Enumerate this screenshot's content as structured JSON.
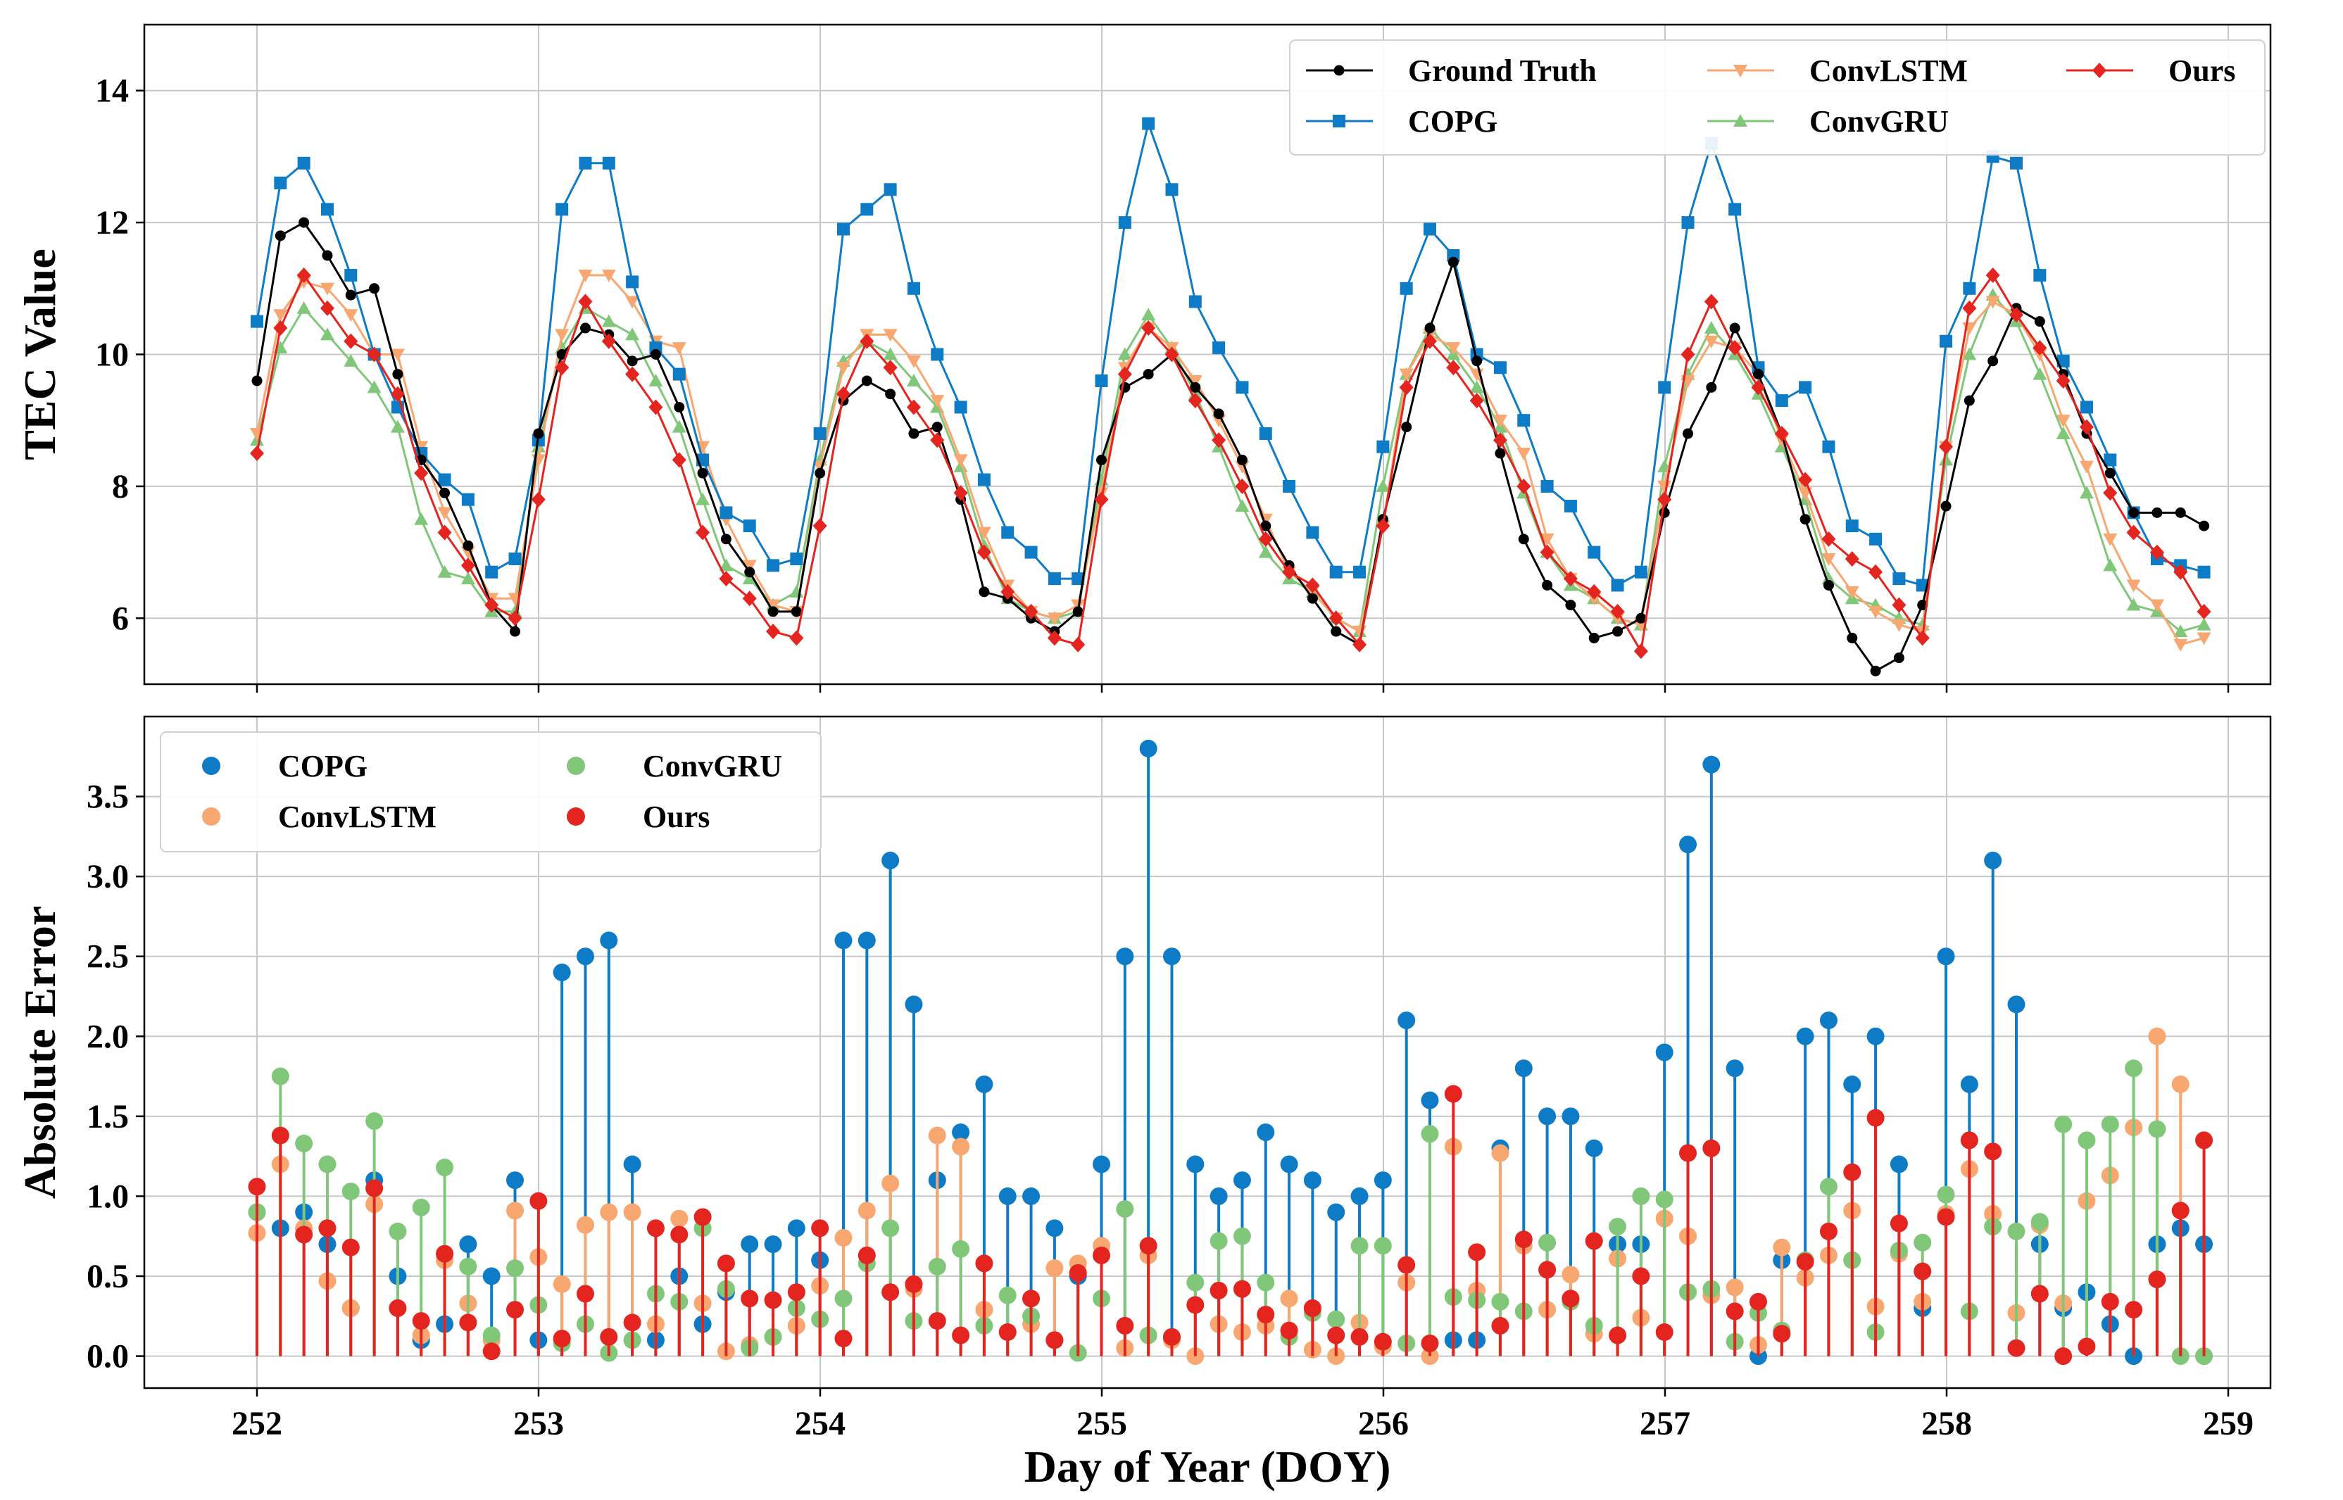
{
  "chart_data": [
    {
      "type": "line",
      "ylabel": "TEC Value",
      "xlim": [
        251.6,
        259.15
      ],
      "ylim": [
        5.0,
        15.0
      ],
      "yticks": [
        6,
        8,
        10,
        12,
        14
      ],
      "grid": true,
      "legend_placement": "top-right",
      "x_start": 252.0,
      "x_step": 0.0833,
      "series": [
        {
          "name": "Ground Truth",
          "color": "#000000",
          "marker": "circle",
          "values": [
            9.6,
            11.8,
            12.0,
            11.5,
            10.9,
            11.0,
            9.7,
            8.4,
            7.9,
            7.1,
            6.2,
            5.8,
            8.8,
            10.0,
            10.4,
            10.3,
            9.9,
            10.0,
            9.2,
            8.2,
            7.2,
            6.7,
            6.1,
            6.1,
            8.2,
            9.3,
            9.6,
            9.4,
            8.8,
            8.9,
            7.8,
            6.4,
            6.3,
            6.0,
            5.8,
            6.1,
            8.4,
            9.5,
            9.7,
            10.0,
            9.5,
            9.1,
            8.4,
            7.4,
            6.8,
            6.3,
            5.8,
            5.6,
            7.5,
            8.9,
            10.4,
            11.4,
            9.9,
            8.5,
            7.2,
            6.5,
            6.2,
            5.7,
            5.8,
            6.0,
            7.6,
            8.8,
            9.5,
            10.4,
            9.7,
            8.8,
            7.5,
            6.5,
            5.7,
            5.2,
            5.4,
            6.2,
            7.7,
            9.3,
            9.9,
            10.7,
            10.5,
            9.7,
            8.8,
            8.2,
            7.6,
            7.6,
            7.6,
            7.4
          ]
        },
        {
          "name": "COPG",
          "color": "#0e7bc6",
          "marker": "square",
          "values": [
            10.5,
            12.6,
            12.9,
            12.2,
            11.2,
            10.0,
            9.2,
            8.5,
            8.1,
            7.8,
            6.7,
            6.9,
            8.7,
            12.2,
            12.9,
            12.9,
            11.1,
            10.1,
            9.7,
            8.4,
            7.6,
            7.4,
            6.8,
            6.9,
            8.8,
            11.9,
            12.2,
            12.5,
            11.0,
            10.0,
            9.2,
            8.1,
            7.3,
            7.0,
            6.6,
            6.6,
            9.6,
            12.0,
            13.5,
            12.5,
            10.8,
            10.1,
            9.5,
            8.8,
            8.0,
            7.3,
            6.7,
            6.7,
            8.6,
            11.0,
            11.9,
            11.5,
            10.0,
            9.8,
            9.0,
            8.0,
            7.7,
            7.0,
            6.5,
            6.7,
            9.5,
            12.0,
            13.2,
            12.2,
            9.8,
            9.3,
            9.5,
            8.6,
            7.4,
            7.2,
            6.6,
            6.5,
            10.2,
            11.0,
            13.0,
            12.9,
            11.2,
            9.9,
            9.2,
            8.4,
            7.6,
            6.9,
            6.8,
            6.7
          ]
        },
        {
          "name": "ConvLSTM",
          "color": "#f9a770",
          "marker": "triangle-down",
          "values": [
            8.8,
            10.6,
            11.1,
            11.0,
            10.6,
            10.0,
            10.0,
            8.6,
            7.6,
            7.0,
            6.3,
            6.3,
            8.4,
            10.3,
            11.2,
            11.2,
            10.8,
            10.2,
            10.1,
            8.6,
            7.5,
            6.8,
            6.2,
            6.1,
            8.3,
            9.8,
            10.3,
            10.3,
            9.9,
            9.3,
            8.4,
            7.3,
            6.5,
            6.1,
            6.0,
            6.2,
            7.9,
            9.8,
            10.4,
            10.1,
            9.6,
            9.0,
            8.3,
            7.5,
            6.7,
            6.4,
            6.0,
            5.8,
            7.4,
            9.7,
            10.3,
            10.1,
            9.7,
            9.0,
            8.5,
            7.2,
            6.6,
            6.3,
            6.0,
            5.9,
            8.0,
            9.6,
            10.2,
            10.1,
            9.7,
            8.7,
            7.9,
            6.9,
            6.4,
            6.1,
            5.9,
            5.8,
            8.6,
            10.4,
            10.8,
            10.6,
            10.0,
            9.0,
            8.3,
            7.2,
            6.5,
            6.2,
            5.6,
            5.7
          ]
        },
        {
          "name": "ConvGRU",
          "color": "#80c77a",
          "marker": "triangle-up",
          "values": [
            8.7,
            10.1,
            10.7,
            10.3,
            9.9,
            9.5,
            8.9,
            7.5,
            6.7,
            6.6,
            6.1,
            6.1,
            8.6,
            10.1,
            10.7,
            10.5,
            10.3,
            9.6,
            8.9,
            7.8,
            6.8,
            6.6,
            6.2,
            6.4,
            8.4,
            9.9,
            10.2,
            10.0,
            9.6,
            9.2,
            8.3,
            7.1,
            6.3,
            6.1,
            6.0,
            6.1,
            8.1,
            10.0,
            10.6,
            10.1,
            9.4,
            8.6,
            7.7,
            7.0,
            6.6,
            6.4,
            6.0,
            5.8,
            8.0,
            9.7,
            10.4,
            10.0,
            9.5,
            8.9,
            7.9,
            7.0,
            6.5,
            6.3,
            6.0,
            5.9,
            8.3,
            9.7,
            10.4,
            10.0,
            9.4,
            8.6,
            7.8,
            6.6,
            6.3,
            6.2,
            6.0,
            5.9,
            8.4,
            10.0,
            10.9,
            10.5,
            9.7,
            8.8,
            7.9,
            6.8,
            6.2,
            6.1,
            5.8,
            5.9
          ]
        },
        {
          "name": "Ours",
          "color": "#e3241f",
          "marker": "diamond",
          "values": [
            8.5,
            10.4,
            11.2,
            10.7,
            10.2,
            10.0,
            9.4,
            8.2,
            7.3,
            6.8,
            6.2,
            6.0,
            7.8,
            9.8,
            10.8,
            10.2,
            9.7,
            9.2,
            8.4,
            7.3,
            6.6,
            6.3,
            5.8,
            5.7,
            7.4,
            9.4,
            10.2,
            9.8,
            9.2,
            8.7,
            7.9,
            7.0,
            6.4,
            6.1,
            5.7,
            5.6,
            7.8,
            9.7,
            10.4,
            10.0,
            9.3,
            8.7,
            8.0,
            7.2,
            6.7,
            6.5,
            6.0,
            5.6,
            7.4,
            9.5,
            10.2,
            9.8,
            9.3,
            8.7,
            8.0,
            7.0,
            6.6,
            6.4,
            6.1,
            5.5,
            7.8,
            10.0,
            10.8,
            10.1,
            9.5,
            8.8,
            8.1,
            7.2,
            6.9,
            6.7,
            6.2,
            5.7,
            8.6,
            10.7,
            11.2,
            10.6,
            10.1,
            9.6,
            8.9,
            7.9,
            7.3,
            7.0,
            6.7,
            6.1
          ]
        }
      ]
    },
    {
      "type": "stem",
      "xlabel": "Day of Year (DOY)",
      "ylabel": "Absolute Error",
      "xlim": [
        251.6,
        259.15
      ],
      "ylim": [
        -0.2,
        4.0
      ],
      "xticks": [
        252,
        253,
        254,
        255,
        256,
        257,
        258,
        259
      ],
      "xtick_labels": [
        "252",
        "253",
        "254",
        "255",
        "256",
        "257",
        "258",
        "259"
      ],
      "yticks": [
        0.0,
        0.5,
        1.0,
        1.5,
        2.0,
        2.5,
        3.0,
        3.5
      ],
      "ytick_labels": [
        "0.0",
        "0.5",
        "1.0",
        "1.5",
        "2.0",
        "2.5",
        "3.0",
        "3.5"
      ],
      "grid": true,
      "legend_placement": "top-left",
      "x_start": 252.0,
      "x_step": 0.0833,
      "series": [
        {
          "name": "COPG",
          "color": "#0e7bc6",
          "values": [
            0.9,
            0.8,
            0.9,
            0.7,
            0.3,
            1.1,
            0.5,
            0.1,
            0.2,
            0.7,
            0.5,
            1.1,
            0.1,
            2.4,
            2.5,
            2.6,
            1.2,
            0.1,
            0.5,
            0.2,
            0.4,
            0.7,
            0.7,
            0.8,
            0.6,
            2.6,
            2.6,
            3.1,
            2.2,
            1.1,
            1.4,
            1.7,
            1.0,
            1.0,
            0.8,
            0.5,
            1.2,
            2.5,
            3.8,
            2.5,
            1.2,
            1.0,
            1.1,
            1.4,
            1.2,
            1.1,
            0.9,
            1.0,
            1.1,
            2.1,
            1.6,
            0.1,
            0.1,
            1.3,
            1.8,
            1.5,
            1.5,
            1.3,
            0.7,
            0.7,
            1.9,
            3.2,
            3.7,
            1.8,
            0.0,
            0.6,
            2.0,
            2.1,
            1.7,
            2.0,
            1.2,
            0.3,
            2.5,
            1.7,
            3.1,
            2.2,
            0.7,
            0.3,
            0.4,
            0.2,
            0.0,
            0.7,
            0.8,
            0.7
          ]
        },
        {
          "name": "ConvLSTM",
          "color": "#f9a770",
          "values": [
            0.77,
            1.2,
            0.8,
            0.47,
            0.3,
            0.95,
            0.3,
            0.13,
            0.6,
            0.33,
            0.1,
            0.91,
            0.62,
            0.45,
            0.82,
            0.9,
            0.9,
            0.2,
            0.86,
            0.33,
            0.03,
            0.07,
            0.12,
            0.19,
            0.44,
            0.74,
            0.91,
            1.08,
            0.42,
            1.38,
            1.31,
            0.29,
            0.15,
            0.2,
            0.55,
            0.58,
            0.69,
            0.05,
            0.63,
            0.1,
            0.0,
            0.2,
            0.15,
            0.19,
            0.36,
            0.04,
            0.0,
            0.21,
            0.06,
            0.46,
            0.0,
            1.31,
            0.41,
            1.27,
            0.69,
            0.29,
            0.51,
            0.14,
            0.61,
            0.24,
            0.86,
            0.75,
            0.38,
            0.43,
            0.07,
            0.68,
            0.49,
            0.63,
            0.91,
            0.31,
            0.64,
            0.34,
            0.89,
            1.17,
            0.89,
            0.27,
            0.82,
            0.33,
            0.97,
            1.13,
            1.43,
            2.0,
            1.7,
            0.0
          ]
        },
        {
          "name": "ConvGRU",
          "color": "#80c77a",
          "values": [
            0.9,
            1.75,
            1.33,
            1.2,
            1.03,
            1.47,
            0.78,
            0.93,
            1.18,
            0.56,
            0.13,
            0.55,
            0.32,
            0.08,
            0.2,
            0.02,
            0.1,
            0.39,
            0.34,
            0.8,
            0.42,
            0.05,
            0.12,
            0.3,
            0.23,
            0.36,
            0.58,
            0.8,
            0.22,
            0.56,
            0.67,
            0.19,
            0.38,
            0.25,
            0.1,
            0.02,
            0.36,
            0.92,
            0.13,
            0.12,
            0.46,
            0.72,
            0.75,
            0.46,
            0.12,
            0.27,
            0.23,
            0.69,
            0.69,
            0.08,
            1.39,
            0.37,
            0.35,
            0.34,
            0.28,
            0.71,
            0.34,
            0.19,
            0.81,
            1.0,
            0.98,
            0.4,
            0.42,
            0.09,
            0.27,
            0.16,
            0.6,
            1.06,
            0.6,
            0.15,
            0.66,
            0.71,
            1.01,
            0.28,
            0.81,
            0.78,
            0.84,
            1.45,
            1.35,
            1.45,
            1.8,
            1.42,
            0.0,
            0.0
          ]
        },
        {
          "name": "Ours",
          "color": "#e3241f",
          "values": [
            1.06,
            1.38,
            0.76,
            0.8,
            0.68,
            1.05,
            0.3,
            0.22,
            0.64,
            0.21,
            0.03,
            0.29,
            0.97,
            0.11,
            0.39,
            0.12,
            0.21,
            0.8,
            0.76,
            0.87,
            0.58,
            0.36,
            0.35,
            0.4,
            0.8,
            0.11,
            0.63,
            0.4,
            0.45,
            0.22,
            0.13,
            0.58,
            0.15,
            0.36,
            0.1,
            0.52,
            0.63,
            0.19,
            0.69,
            0.12,
            0.32,
            0.41,
            0.42,
            0.26,
            0.16,
            0.3,
            0.13,
            0.12,
            0.09,
            0.57,
            0.08,
            1.64,
            0.65,
            0.19,
            0.73,
            0.54,
            0.36,
            0.72,
            0.13,
            0.5,
            0.15,
            1.27,
            1.3,
            0.28,
            0.34,
            0.14,
            0.59,
            0.78,
            1.15,
            1.49,
            0.83,
            0.53,
            0.87,
            1.35,
            1.28,
            0.05,
            0.39,
            0.0,
            0.06,
            0.34,
            0.29,
            0.48,
            0.91,
            1.35
          ]
        }
      ]
    }
  ]
}
